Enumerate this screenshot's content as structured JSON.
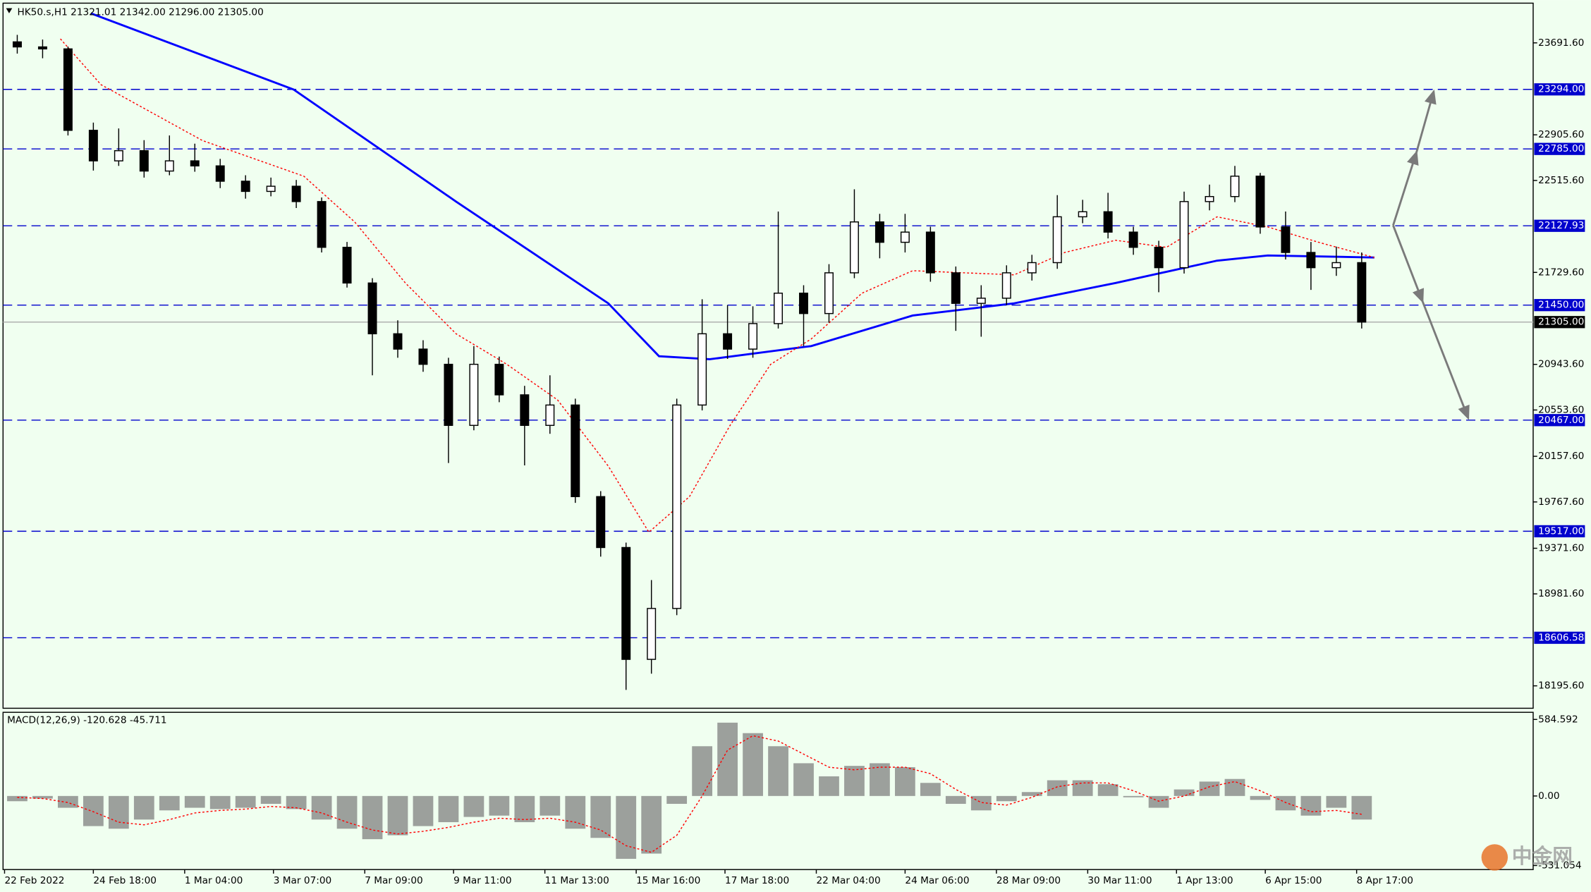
{
  "chart_data": [
    {
      "type": "candlestick",
      "title": "HK50.s,H1  21321.01 21342.00 21296.00 21305.00",
      "up_color": "#ffffff",
      "down_color": "#000000",
      "x": [
        0,
        1,
        2,
        3,
        4,
        5,
        6,
        7,
        8,
        9,
        10,
        11,
        12,
        13,
        14,
        15,
        16,
        17,
        18,
        19,
        20,
        21,
        22,
        23,
        24,
        25,
        26,
        27,
        28,
        29,
        30,
        31,
        32,
        33,
        34,
        35,
        36,
        37,
        38,
        39,
        40,
        41,
        42,
        43,
        44,
        45,
        46,
        47,
        48,
        49,
        50,
        51,
        52,
        53
      ],
      "open": [
        23700,
        23657,
        23640,
        22944,
        22683,
        22770,
        22596,
        22683,
        22640,
        22509,
        22422,
        22466,
        22335,
        21944,
        21639,
        21205,
        21074,
        20944,
        20422,
        20944,
        20683,
        20422,
        20596,
        19813,
        19378,
        18422,
        18857,
        20596,
        21205,
        21074,
        21292,
        21552,
        21378,
        21726,
        22161,
        21987,
        22074,
        21726,
        21465,
        21509,
        21726,
        21813,
        22205,
        22248,
        22074,
        21944,
        21770,
        22335,
        22378,
        22552,
        22118,
        21900,
        21770,
        21813
      ],
      "high": [
        23760,
        23720,
        23660,
        23010,
        22960,
        22860,
        22900,
        22830,
        22700,
        22560,
        22540,
        22520,
        22370,
        21990,
        21680,
        21320,
        21150,
        21000,
        21100,
        21010,
        20760,
        20850,
        20650,
        19860,
        19420,
        19100,
        20650,
        21500,
        21450,
        21440,
        22250,
        21620,
        21800,
        22440,
        22230,
        22230,
        22120,
        21780,
        21620,
        21790,
        21880,
        22390,
        22350,
        22410,
        22120,
        22000,
        22420,
        22480,
        22640,
        22580,
        22250,
        21990,
        21950,
        21900
      ],
      "low": [
        23600,
        23560,
        22900,
        22600,
        22640,
        22540,
        22560,
        22590,
        22450,
        22360,
        22380,
        22280,
        21900,
        21600,
        20850,
        21000,
        20880,
        20100,
        20380,
        20620,
        20080,
        20350,
        19760,
        19300,
        18161,
        18300,
        18800,
        20550,
        20990,
        21000,
        21250,
        21100,
        21300,
        21680,
        21850,
        21900,
        21650,
        21230,
        21180,
        21450,
        21660,
        21760,
        22150,
        22020,
        21880,
        21560,
        21720,
        22260,
        22330,
        22060,
        21840,
        21580,
        21700,
        21250
      ],
      "close": [
        23657,
        23640,
        22944,
        22683,
        22770,
        22596,
        22683,
        22640,
        22509,
        22422,
        22466,
        22335,
        21944,
        21639,
        21205,
        21074,
        20944,
        20422,
        20944,
        20683,
        20422,
        20596,
        19813,
        19378,
        18422,
        18857,
        20596,
        21205,
        21074,
        21292,
        21552,
        21378,
        21726,
        22161,
        21987,
        22074,
        21726,
        21465,
        21509,
        21726,
        21813,
        22205,
        22248,
        22074,
        21944,
        21770,
        22335,
        22378,
        22552,
        22118,
        21900,
        21770,
        21813,
        21305
      ],
      "lines": [
        {
          "color": "#0000ff",
          "dashed": false,
          "x": [
            2.9,
            10.9,
            17.3,
            23.3,
            25.3,
            27.3,
            31.3,
            35.3,
            39.3,
            43.3,
            47.3,
            49.3,
            53.5
          ],
          "values": [
            23944,
            23292,
            22335,
            21465,
            21013,
            20987,
            21100,
            21361,
            21465,
            21639,
            21830,
            21874,
            21857
          ]
        },
        {
          "color": "#ff0000",
          "dashed": true,
          "x": [
            1.7,
            3.3,
            7.3,
            11.3,
            13.3,
            15.3,
            17.3,
            19.3,
            21.3,
            23.3,
            24.9,
            26.5,
            28.1,
            29.7,
            31.3,
            33.3,
            35.3,
            39.3,
            41.3,
            43.3,
            45.3,
            47.3,
            49.3,
            51.3,
            53.5
          ],
          "values": [
            23726,
            23335,
            22857,
            22552,
            22161,
            21639,
            21205,
            20944,
            20639,
            20074,
            19509,
            19813,
            20422,
            20944,
            21161,
            21552,
            21744,
            21709,
            21900,
            22004,
            21944,
            22205,
            22118,
            21987,
            21857
          ]
        }
      ],
      "levels": [
        {
          "value": 23294,
          "label": "23294.00"
        },
        {
          "value": 22785,
          "label": "22785.00"
        },
        {
          "value": 22127.93,
          "label": "22127.93"
        },
        {
          "value": 21450,
          "label": "21450.00"
        },
        {
          "value": 20467,
          "label": "20467.00"
        },
        {
          "value": 19517,
          "label": "19517.00"
        },
        {
          "value": 18606.58,
          "label": "18606.58"
        }
      ],
      "level_color": "#0000cd",
      "last_price": {
        "value": 21305,
        "label": "21305.00"
      },
      "xlim": [
        -0.56,
        59.76
      ],
      "ylim": [
        18004,
        24031
      ],
      "yticks": [
        {
          "value": 23691.6,
          "label": "23691.60"
        },
        {
          "value": 22905.6,
          "label": "22905.60"
        },
        {
          "value": 22515.6,
          "label": "22515.60"
        },
        {
          "value": 21729.6,
          "label": "21729.60"
        },
        {
          "value": 20943.6,
          "label": "20943.60"
        },
        {
          "value": 20553.6,
          "label": "20553.60"
        },
        {
          "value": 20157.6,
          "label": "20157.60"
        },
        {
          "value": 19767.6,
          "label": "19767.60"
        },
        {
          "value": 19371.6,
          "label": "19371.60"
        },
        {
          "value": 18981.6,
          "label": "18981.60"
        },
        {
          "value": 18195.6,
          "label": "18195.60"
        }
      ],
      "xticks": [
        {
          "value": -0.5,
          "label": "22 Feb 2022"
        },
        {
          "value": 3,
          "label": "24 Feb 18:00"
        },
        {
          "value": 6.6,
          "label": "1 Mar 04:00"
        },
        {
          "value": 10.1,
          "label": "3 Mar 07:00"
        },
        {
          "value": 13.7,
          "label": "7 Mar 09:00"
        },
        {
          "value": 17.2,
          "label": "9 Mar 11:00"
        },
        {
          "value": 20.8,
          "label": "11 Mar 13:00"
        },
        {
          "value": 24.4,
          "label": "15 Mar 16:00"
        },
        {
          "value": 27.9,
          "label": "17 Mar 18:00"
        },
        {
          "value": 31.5,
          "label": "22 Mar 04:00"
        },
        {
          "value": 35,
          "label": "24 Mar 06:00"
        },
        {
          "value": 38.6,
          "label": "28 Mar 09:00"
        },
        {
          "value": 42.2,
          "label": "30 Mar 11:00"
        },
        {
          "value": 45.7,
          "label": "1 Apr 13:00"
        },
        {
          "value": 49.2,
          "label": "6 Apr 15:00"
        },
        {
          "value": 52.8,
          "label": "8 Apr 17:00"
        }
      ]
    },
    {
      "type": "macd",
      "title": "MACD(12,26,9) -120.628 -45.711",
      "color": "#808080",
      "signal_color": "#ff0000",
      "values": [
        -40,
        -20,
        -90,
        -230,
        -250,
        -180,
        -110,
        -90,
        -100,
        -90,
        -60,
        -100,
        -180,
        -250,
        -330,
        -300,
        -230,
        -200,
        -160,
        -150,
        -200,
        -150,
        -250,
        -320,
        -480,
        -440,
        -60,
        380,
        560,
        480,
        380,
        250,
        150,
        230,
        250,
        220,
        100,
        -60,
        -110,
        -40,
        30,
        120,
        120,
        90,
        -10,
        -90,
        50,
        110,
        130,
        -30,
        -110,
        -150,
        -90,
        -180
      ],
      "signal": [
        -10,
        -20,
        -50,
        -120,
        -200,
        -220,
        -180,
        -130,
        -110,
        -100,
        -80,
        -90,
        -130,
        -200,
        -260,
        -290,
        -270,
        -240,
        -200,
        -170,
        -180,
        -170,
        -200,
        -260,
        -380,
        -430,
        -300,
        0,
        350,
        460,
        420,
        320,
        220,
        200,
        220,
        220,
        170,
        50,
        -50,
        -70,
        -10,
        70,
        100,
        100,
        40,
        -40,
        0,
        70,
        110,
        40,
        -50,
        -120,
        -110,
        -140
      ],
      "ylim": [
        -562,
        639
      ],
      "yticks": [
        {
          "value": 584.592,
          "label": "584.592"
        },
        {
          "value": 0,
          "label": "0.00"
        },
        {
          "value": -531.054,
          "label": "-531.054"
        }
      ]
    }
  ],
  "watermark": "中金网"
}
